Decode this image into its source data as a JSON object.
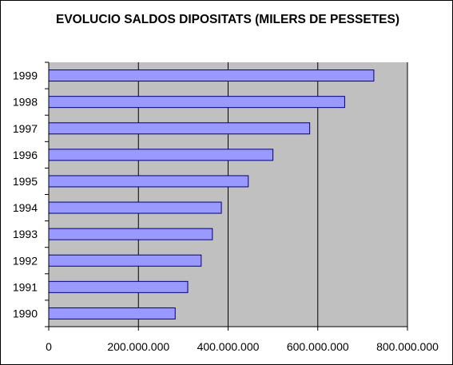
{
  "chart_data": {
    "type": "bar",
    "orientation": "horizontal",
    "title": "EVOLUCIO SALDOS DIPOSITATS (MILERS DE PESSETES)",
    "categories": [
      "1990",
      "1991",
      "1992",
      "1993",
      "1994",
      "1995",
      "1996",
      "1997",
      "1998",
      "1999"
    ],
    "values": [
      282000000,
      310000000,
      340000000,
      365000000,
      385000000,
      445000000,
      500000000,
      582000000,
      660000000,
      725000000
    ],
    "xlim": [
      0,
      800000000
    ],
    "xticks": [
      0,
      200000000,
      400000000,
      600000000,
      800000000
    ],
    "xtick_labels": [
      "0",
      "200.000.000",
      "400.000.000",
      "600.000.000",
      "800.000.000"
    ],
    "xlabel": "",
    "ylabel": "",
    "grid": "vertical major gridlines",
    "legend": "none",
    "colors": {
      "plot_background": "#c0c0c0",
      "bar_fill": "#9999ff",
      "bar_stroke": "#000080",
      "gridline": "#000000",
      "frame": "#000000"
    }
  }
}
